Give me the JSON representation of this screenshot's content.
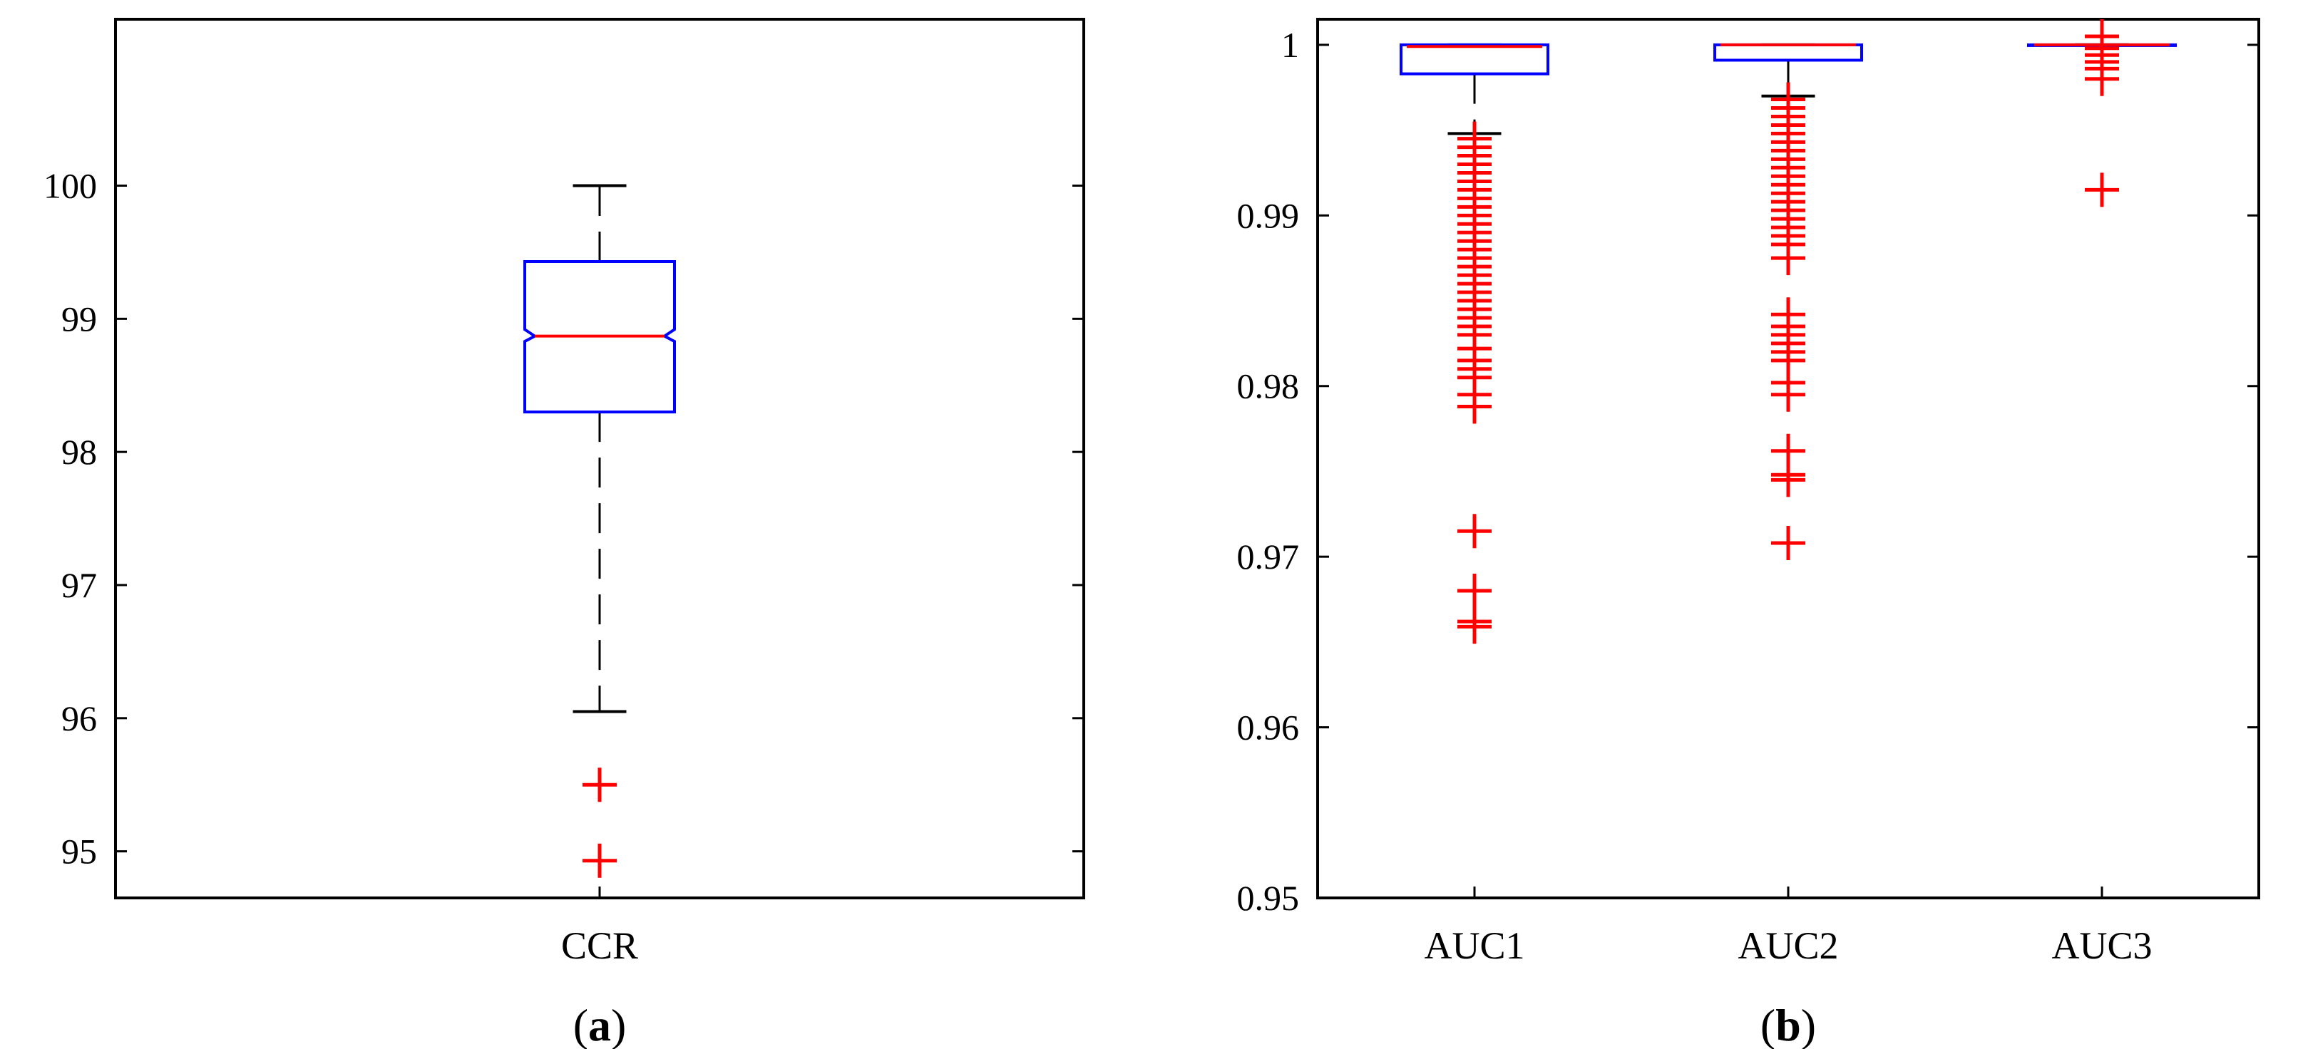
{
  "colors": {
    "box": "#0000ff",
    "median": "#ff0000",
    "outlier": "#ff0000",
    "whisker": "#000000",
    "axis": "#000000"
  },
  "chart_data": [
    {
      "type": "box",
      "panel_label": "a",
      "ylim": [
        94.65,
        101.25
      ],
      "yticks": [
        95,
        96,
        97,
        98,
        99,
        100
      ],
      "ytick_labels": [
        "95",
        "96",
        "97",
        "98",
        "99",
        "100"
      ],
      "notched": true,
      "boxes": [
        {
          "label": "CCR",
          "whisker_low": 96.05,
          "q1": 98.3,
          "median": 98.87,
          "q3": 99.43,
          "notch_low": 98.83,
          "notch_high": 98.92,
          "whisker_high": 100.0,
          "outliers": [
            95.5,
            94.93
          ]
        }
      ]
    },
    {
      "type": "box",
      "panel_label": "b",
      "ylim": [
        0.95,
        1.0015
      ],
      "yticks": [
        0.95,
        0.96,
        0.97,
        0.98,
        0.99,
        1.0
      ],
      "ytick_labels": [
        "0.95",
        "0.96",
        "0.97",
        "0.98",
        "0.99",
        "1"
      ],
      "notched": false,
      "boxes": [
        {
          "label": "AUC1",
          "whisker_low": 0.9948,
          "q1": 0.9983,
          "median": 0.9999,
          "q3": 1.0,
          "whisker_high": 1.0,
          "outliers": [
            0.9945,
            0.994,
            0.9935,
            0.993,
            0.9925,
            0.992,
            0.9915,
            0.991,
            0.9905,
            0.99,
            0.9895,
            0.989,
            0.9885,
            0.988,
            0.9875,
            0.987,
            0.9865,
            0.986,
            0.9855,
            0.985,
            0.9845,
            0.984,
            0.9835,
            0.983,
            0.9822,
            0.9815,
            0.981,
            0.9805,
            0.9795,
            0.9788,
            0.9715,
            0.968,
            0.9662,
            0.9659
          ]
        },
        {
          "label": "AUC2",
          "whisker_low": 0.997,
          "q1": 0.9991,
          "median": 1.0,
          "q3": 1.0,
          "whisker_high": 1.0,
          "outliers": [
            0.9968,
            0.9963,
            0.9958,
            0.9953,
            0.9948,
            0.9943,
            0.9938,
            0.9933,
            0.9928,
            0.9923,
            0.9918,
            0.9913,
            0.9908,
            0.9903,
            0.9898,
            0.9893,
            0.9888,
            0.9883,
            0.9875,
            0.9842,
            0.9835,
            0.983,
            0.9825,
            0.982,
            0.9815,
            0.9802,
            0.9795,
            0.9762,
            0.9748,
            0.9745,
            0.9708
          ]
        },
        {
          "label": "AUC3",
          "whisker_low": 1.0,
          "q1": 1.0,
          "median": 1.0,
          "q3": 1.0,
          "whisker_high": 1.0,
          "outliers": [
            1.0005,
            0.9998,
            0.9994,
            0.999,
            0.9986,
            0.998,
            0.9915
          ]
        }
      ]
    }
  ]
}
